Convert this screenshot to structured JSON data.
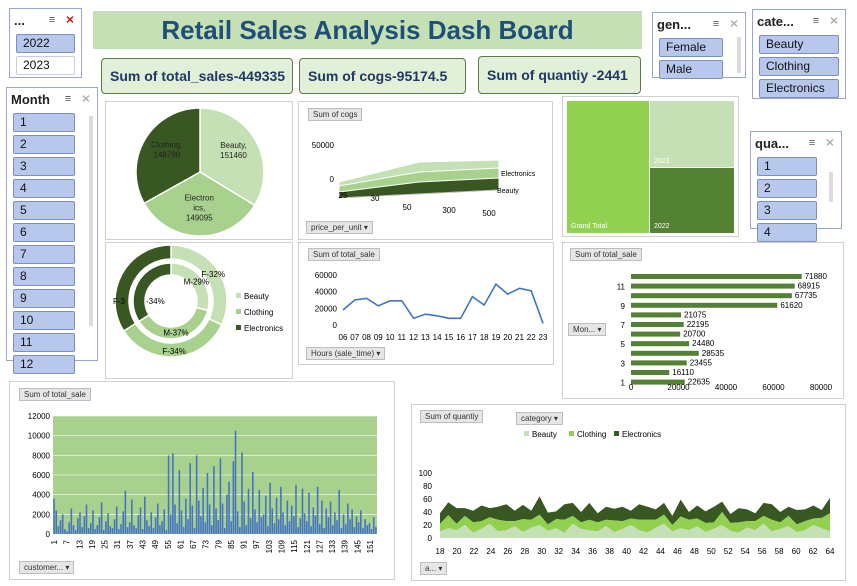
{
  "title": "Retail Sales Analysis Dash Board",
  "year_slicer": {
    "title": "...",
    "items": [
      "2022",
      "2023"
    ]
  },
  "gender_slicer": {
    "title": "gen...",
    "items": [
      "Female",
      "Male"
    ]
  },
  "category_slicer": {
    "title": "cate...",
    "items": [
      "Beauty",
      "Clothing",
      "Electronics"
    ]
  },
  "month_slicer": {
    "title": "Month",
    "items": [
      "1",
      "2",
      "3",
      "4",
      "5",
      "6",
      "7",
      "8",
      "9",
      "10",
      "11",
      "12"
    ]
  },
  "quarter_slicer": {
    "title": "qua...",
    "items": [
      "1",
      "2",
      "3",
      "4"
    ]
  },
  "kpis": {
    "sales": "Sum of total_sales-449335",
    "cogs_label": "Sum of cogs-",
    "cogs_value": "95174.5",
    "quantity_label": "Sum of quantiy -",
    "quantity_value": "2441"
  },
  "colors": {
    "light": "#c5e0b4",
    "mid": "#a9d18e",
    "dark": "#385723",
    "bright": "#92d050",
    "green2": "#548235",
    "line": "#4472c4",
    "title_bg": "#c5e0b4",
    "title_fg": "#1f4e79"
  },
  "chart_data": [
    {
      "id": "pie",
      "type": "pie",
      "slices": [
        {
          "label": "Beauty",
          "value": 151460,
          "text": "Beauty,\n151460"
        },
        {
          "label": "Electronics",
          "value": 149095,
          "text": "Electron\nics,\n149095"
        },
        {
          "label": "Clothing",
          "value": 148780,
          "text": "Clothing,\n148780"
        }
      ]
    },
    {
      "id": "cogs3d",
      "type": "area",
      "title": "Sum of cogs",
      "x_ticks": [
        "25",
        "30",
        "50",
        "300",
        "500"
      ],
      "y_ticks": [
        "0",
        "50000"
      ],
      "series_labels": [
        "Electronics",
        "Beauty"
      ],
      "axis_button": "price_per_unit"
    },
    {
      "id": "treemap",
      "type": "treemap",
      "labels": [
        "Grand Total",
        "2023",
        "2022"
      ]
    },
    {
      "id": "donut",
      "type": "pie",
      "outer": [
        {
          "label": "F-32%",
          "value": 32
        },
        {
          "label": "F-34%",
          "value": 34
        },
        {
          "label": "F-34%",
          "value": 34
        }
      ],
      "inner": [
        {
          "label": "M-29%",
          "value": 29
        },
        {
          "label": "M-37%",
          "value": 37
        },
        {
          "label": "M-34%",
          "value": 34
        }
      ],
      "legend": [
        "Beauty",
        "Clothing",
        "Electronics"
      ],
      "outer_left_label": "F-3",
      "inner_left_label": "-34%"
    },
    {
      "id": "hours",
      "type": "line",
      "title": "Sum of total_sale",
      "categories": [
        "06",
        "07",
        "08",
        "09",
        "10",
        "11",
        "12",
        "13",
        "14",
        "15",
        "16",
        "17",
        "18",
        "19",
        "20",
        "21",
        "22",
        "23"
      ],
      "values": [
        18000,
        30000,
        32000,
        23000,
        29000,
        29000,
        8000,
        13000,
        11000,
        8000,
        8000,
        34000,
        24000,
        49000,
        37000,
        44000,
        41000,
        2000
      ],
      "y_ticks": [
        "60000",
        "40000",
        "20000",
        "0"
      ],
      "ylim": [
        0,
        60000
      ],
      "axis_button": "Hours (sale_time)"
    },
    {
      "id": "months",
      "type": "bar",
      "title": "Sum of total_sale",
      "categories": [
        "12",
        "11",
        "10",
        "9",
        "8",
        "7",
        "6",
        "5",
        "4",
        "3",
        "2",
        "1"
      ],
      "values": [
        71880,
        68915,
        67735,
        61620,
        21075,
        22195,
        20700,
        24480,
        28535,
        23455,
        16110,
        22635
      ],
      "tick_labels": [
        "11",
        "9",
        "7",
        "5",
        "3",
        "1"
      ],
      "x_ticks": [
        "0",
        "20000",
        "40000",
        "60000",
        "80000"
      ],
      "xlim": [
        0,
        80000
      ],
      "axis_button": "Mon..."
    },
    {
      "id": "customers",
      "type": "bar",
      "title": "Sum of total_sale",
      "y_ticks": [
        "12000",
        "10000",
        "8000",
        "6000",
        "4000",
        "2000",
        "0"
      ],
      "ylim": [
        0,
        12000
      ],
      "x_ticks": [
        "1",
        "7",
        "13",
        "19",
        "25",
        "31",
        "37",
        "43",
        "49",
        "55",
        "61",
        "67",
        "73",
        "79",
        "85",
        "91",
        "97",
        "103",
        "109",
        "115",
        "121",
        "127",
        "133",
        "139",
        "145",
        "151"
      ],
      "values": [
        3600,
        2400,
        800,
        1400,
        2000,
        500,
        300,
        1200,
        2600,
        900,
        400,
        1600,
        2200,
        700,
        1800,
        3000,
        600,
        1100,
        2400,
        500,
        900,
        1700,
        3200,
        400,
        1300,
        2100,
        800,
        600,
        1500,
        2800,
        500,
        1000,
        2300,
        4400,
        700,
        1200,
        3500,
        900,
        600,
        1900,
        2700,
        500,
        3800,
        1400,
        800,
        2200,
        600,
        1700,
        3100,
        900,
        1300,
        2500,
        400,
        8000,
        2000,
        8200,
        3000,
        1100,
        6500,
        2400,
        700,
        3600,
        1500,
        7200,
        2900,
        600,
        8000,
        3400,
        1800,
        4700,
        1200,
        6200,
        3000,
        900,
        6900,
        2600,
        1400,
        7700,
        3100,
        600,
        4000,
        5300,
        1300,
        7400,
        10500,
        2300,
        700,
        8300,
        3300,
        900,
        4600,
        1600,
        6300,
        2500,
        1200,
        4500,
        1700,
        2000,
        3900,
        800,
        5200,
        2600,
        1100,
        3700,
        1500,
        4800,
        2200,
        900,
        3400,
        1300,
        2900,
        1800,
        5000,
        700,
        1600,
        4600,
        2100,
        1300,
        4200,
        800,
        2700,
        1900,
        4800,
        1000,
        3400,
        600,
        2600,
        1700,
        3300,
        900,
        2200,
        1400,
        4500,
        600,
        2000,
        1000,
        3100,
        1500,
        2500,
        700,
        1800,
        1200,
        2400,
        600,
        1500,
        900,
        1100,
        500,
        1700,
        700
      ],
      "axis_button": "customer..."
    },
    {
      "id": "quantity",
      "type": "area",
      "title": "Sum of quantiy",
      "legend_button": "category",
      "legend": [
        "Beauty",
        "Clothing",
        "Electronics"
      ],
      "y_ticks": [
        "100",
        "80",
        "60",
        "40",
        "20",
        "0"
      ],
      "ylim": [
        0,
        100
      ],
      "x_ticks": [
        "18",
        "20",
        "22",
        "24",
        "26",
        "28",
        "30",
        "32",
        "34",
        "36",
        "38",
        "40",
        "42",
        "44",
        "46",
        "48",
        "50",
        "52",
        "54",
        "56",
        "58",
        "60",
        "62",
        "64"
      ],
      "series": [
        {
          "name": "Beauty",
          "values": [
            10,
            15,
            12,
            20,
            8,
            14,
            22,
            10,
            12,
            18,
            9,
            16,
            20,
            11,
            15,
            8,
            22,
            14,
            12,
            10,
            18,
            9,
            14,
            20,
            12,
            8,
            16,
            22,
            10,
            15,
            12,
            18,
            9,
            14,
            20,
            11,
            8,
            16,
            12,
            22,
            10,
            14,
            18,
            9,
            12,
            20,
            15,
            10
          ]
        },
        {
          "name": "Clothing",
          "values": [
            12,
            20,
            10,
            14,
            16,
            12,
            10,
            18,
            14,
            8,
            20,
            12,
            16,
            10,
            14,
            20,
            12,
            10,
            16,
            14,
            10,
            18,
            12,
            10,
            16,
            20,
            12,
            14,
            10,
            18,
            16,
            12,
            14,
            10,
            20,
            12,
            16,
            10,
            14,
            12,
            18,
            10,
            16,
            12,
            14,
            10,
            16,
            28
          ]
        },
        {
          "name": "Electronics",
          "values": [
            16,
            20,
            24,
            12,
            18,
            24,
            14,
            20,
            26,
            16,
            22,
            14,
            28,
            18,
            12,
            24,
            20,
            16,
            26,
            14,
            20,
            18,
            22,
            12,
            24,
            20,
            16,
            18,
            14,
            26,
            12,
            20,
            18,
            24,
            16,
            14,
            22,
            18,
            12,
            20,
            24,
            16,
            14,
            22,
            18,
            20,
            12,
            24
          ]
        }
      ],
      "axis_button": "a..."
    }
  ]
}
